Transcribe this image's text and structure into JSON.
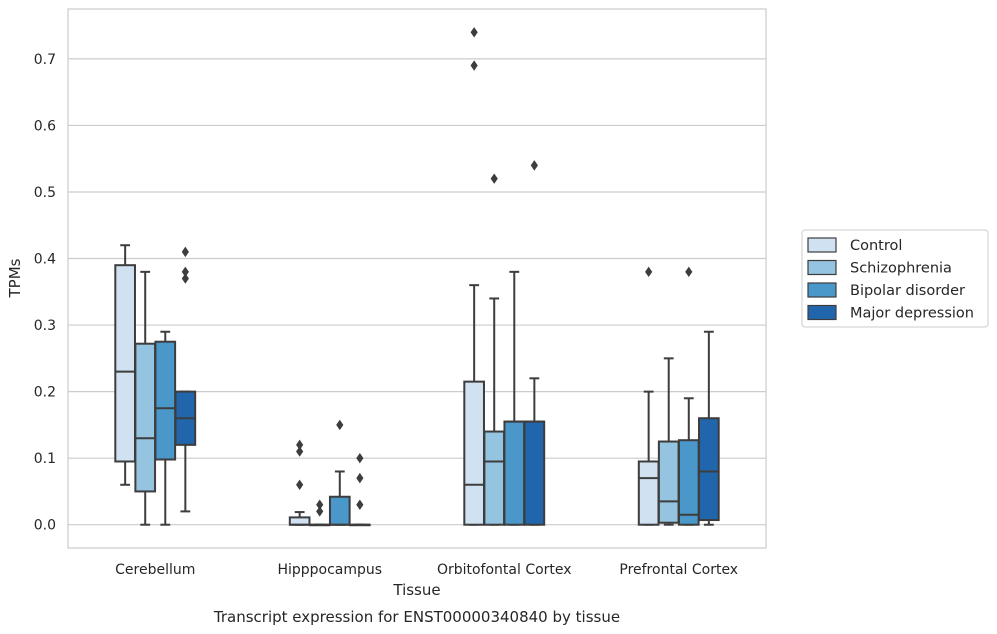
{
  "chart_data": {
    "type": "box",
    "caption": "Transcript expression for ENST00000340840 by tissue",
    "xlabel": "Tissue",
    "ylabel": "TPMs",
    "ylim": [
      -0.035,
      0.775
    ],
    "yticks": [
      0.0,
      0.1,
      0.2,
      0.3,
      0.4,
      0.5,
      0.6,
      0.7
    ],
    "ytick_labels": [
      "0.0",
      "0.1",
      "0.2",
      "0.3",
      "0.4",
      "0.5",
      "0.6",
      "0.7"
    ],
    "grid": true,
    "legend_position": "right",
    "categories": [
      "Cerebellum",
      "Hipppocampus",
      "Orbitofontal Cortex",
      "Prefrontal Cortex"
    ],
    "series": [
      {
        "name": "Control",
        "color": "#d0e1f2",
        "boxes": [
          {
            "q1": 0.095,
            "median": 0.23,
            "q3": 0.39,
            "whisker_low": 0.06,
            "whisker_high": 0.42,
            "outliers": []
          },
          {
            "q1": 0.0,
            "median": 0.0,
            "q3": 0.011,
            "whisker_low": 0.0,
            "whisker_high": 0.019,
            "outliers": [
              0.06,
              0.11,
              0.12
            ]
          },
          {
            "q1": 0.0,
            "median": 0.06,
            "q3": 0.215,
            "whisker_low": 0.0,
            "whisker_high": 0.36,
            "outliers": [
              0.69,
              0.74
            ]
          },
          {
            "q1": 0.0,
            "median": 0.07,
            "q3": 0.095,
            "whisker_low": 0.0,
            "whisker_high": 0.2,
            "outliers": [
              0.38
            ]
          }
        ]
      },
      {
        "name": "Schizophrenia",
        "color": "#94c4df",
        "boxes": [
          {
            "q1": 0.05,
            "median": 0.13,
            "q3": 0.272,
            "whisker_low": 0.0,
            "whisker_high": 0.38,
            "outliers": []
          },
          {
            "q1": 0.0,
            "median": 0.0,
            "q3": 0.0,
            "whisker_low": 0.0,
            "whisker_high": 0.0,
            "outliers": [
              0.02,
              0.03
            ]
          },
          {
            "q1": 0.0,
            "median": 0.095,
            "q3": 0.14,
            "whisker_low": 0.0,
            "whisker_high": 0.34,
            "outliers": [
              0.52
            ]
          },
          {
            "q1": 0.003,
            "median": 0.035,
            "q3": 0.125,
            "whisker_low": 0.0,
            "whisker_high": 0.25,
            "outliers": []
          }
        ]
      },
      {
        "name": "Bipolar disorder",
        "color": "#4a98c9",
        "boxes": [
          {
            "q1": 0.098,
            "median": 0.175,
            "q3": 0.275,
            "whisker_low": 0.0,
            "whisker_high": 0.29,
            "outliers": []
          },
          {
            "q1": 0.0,
            "median": 0.0,
            "q3": 0.042,
            "whisker_low": 0.0,
            "whisker_high": 0.08,
            "outliers": [
              0.15
            ]
          },
          {
            "q1": 0.0,
            "median": 0.155,
            "q3": 0.155,
            "whisker_low": 0.0,
            "whisker_high": 0.38,
            "outliers": []
          },
          {
            "q1": 0.0,
            "median": 0.015,
            "q3": 0.127,
            "whisker_low": 0.0,
            "whisker_high": 0.19,
            "outliers": [
              0.38
            ]
          }
        ]
      },
      {
        "name": "Major depression",
        "color": "#2166ac",
        "boxes": [
          {
            "q1": 0.12,
            "median": 0.16,
            "q3": 0.2,
            "whisker_low": 0.02,
            "whisker_high": 0.2,
            "outliers": [
              0.37,
              0.38,
              0.41
            ]
          },
          {
            "q1": 0.0,
            "median": 0.0,
            "q3": 0.0,
            "whisker_low": 0.0,
            "whisker_high": 0.0,
            "outliers": [
              0.03,
              0.07,
              0.1
            ]
          },
          {
            "q1": 0.0,
            "median": 0.155,
            "q3": 0.155,
            "whisker_low": 0.0,
            "whisker_high": 0.22,
            "outliers": [
              0.54
            ]
          },
          {
            "q1": 0.007,
            "median": 0.08,
            "q3": 0.16,
            "whisker_low": 0.0,
            "whisker_high": 0.29,
            "outliers": []
          }
        ]
      }
    ]
  }
}
